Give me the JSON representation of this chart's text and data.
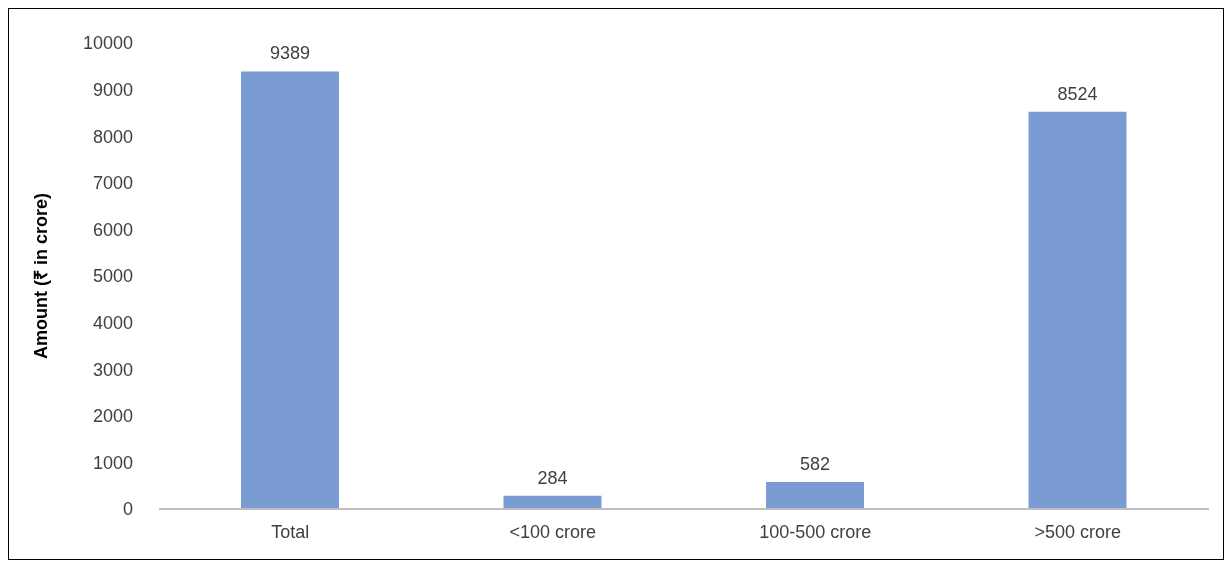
{
  "chart_data": {
    "type": "bar",
    "ylabel": "Amount (₹ in crore)",
    "categories": [
      "Total",
      "<100 crore",
      "100-500 crore",
      ">500 crore"
    ],
    "values": [
      9389,
      284,
      582,
      8524
    ],
    "color": "#7b9bd3",
    "ylim": [
      0,
      10000
    ],
    "yticks": [
      0,
      1000,
      2000,
      3000,
      4000,
      5000,
      6000,
      7000,
      8000,
      9000,
      10000
    ],
    "grid": false,
    "data_labels": true
  }
}
